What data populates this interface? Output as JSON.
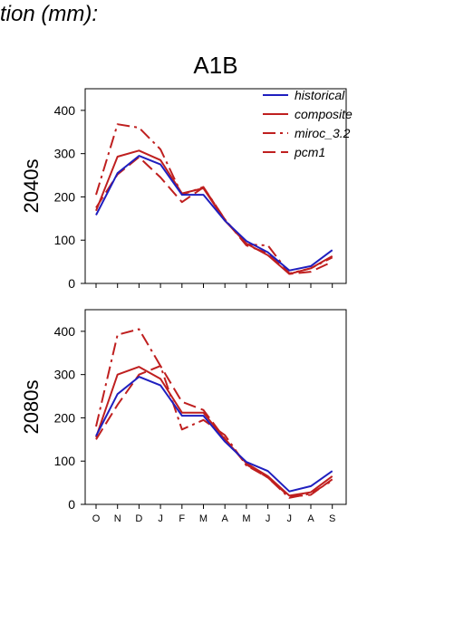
{
  "page": {
    "title": "tion (mm):"
  },
  "chart_data": [
    {
      "type": "line",
      "title": "A1B",
      "ylabel": "2040s",
      "xlabel": "",
      "categories": [
        "O",
        "N",
        "D",
        "J",
        "F",
        "M",
        "A",
        "M",
        "J",
        "J",
        "A",
        "S"
      ],
      "ylim": [
        0,
        450
      ],
      "yticks": [
        0,
        100,
        200,
        300,
        400
      ],
      "grid": false,
      "legend_position": "top-right",
      "series": [
        {
          "name": "historical",
          "color": "#1f1fbf",
          "style": "solid",
          "values": [
            158,
            255,
            295,
            275,
            205,
            205,
            145,
            98,
            72,
            30,
            40,
            77
          ]
        },
        {
          "name": "composite",
          "color": "#bf1f1f",
          "style": "solid",
          "values": [
            168,
            293,
            307,
            285,
            208,
            220,
            145,
            92,
            65,
            22,
            35,
            63
          ]
        },
        {
          "name": "miroc_3.2",
          "color": "#bf1f1f",
          "style": "dashdot",
          "values": [
            205,
            368,
            360,
            310,
            205,
            223,
            148,
            90,
            88,
            23,
            35,
            60
          ]
        },
        {
          "name": "pcm1",
          "color": "#bf1f1f",
          "style": "dashed",
          "values": [
            175,
            252,
            292,
            245,
            188,
            222,
            148,
            88,
            70,
            22,
            27,
            50
          ]
        }
      ]
    },
    {
      "type": "line",
      "title": "",
      "ylabel": "2080s",
      "xlabel": "",
      "categories": [
        "O",
        "N",
        "D",
        "J",
        "F",
        "M",
        "A",
        "M",
        "J",
        "J",
        "A",
        "S"
      ],
      "ylim": [
        0,
        450
      ],
      "yticks": [
        0,
        100,
        200,
        300,
        400
      ],
      "grid": false,
      "series": [
        {
          "name": "historical",
          "color": "#1f1fbf",
          "style": "solid",
          "values": [
            158,
            255,
            295,
            275,
            205,
            205,
            145,
            98,
            77,
            30,
            42,
            77
          ]
        },
        {
          "name": "composite",
          "color": "#bf1f1f",
          "style": "solid",
          "values": [
            155,
            300,
            318,
            290,
            212,
            212,
            150,
            95,
            65,
            20,
            28,
            65
          ]
        },
        {
          "name": "miroc_3.2",
          "color": "#bf1f1f",
          "style": "dashdot",
          "values": [
            180,
            392,
            405,
            320,
            173,
            195,
            160,
            90,
            62,
            15,
            25,
            55
          ]
        },
        {
          "name": "pcm1",
          "color": "#bf1f1f",
          "style": "dashed",
          "values": [
            150,
            230,
            300,
            320,
            237,
            218,
            152,
            92,
            62,
            18,
            22,
            58
          ]
        }
      ]
    }
  ]
}
